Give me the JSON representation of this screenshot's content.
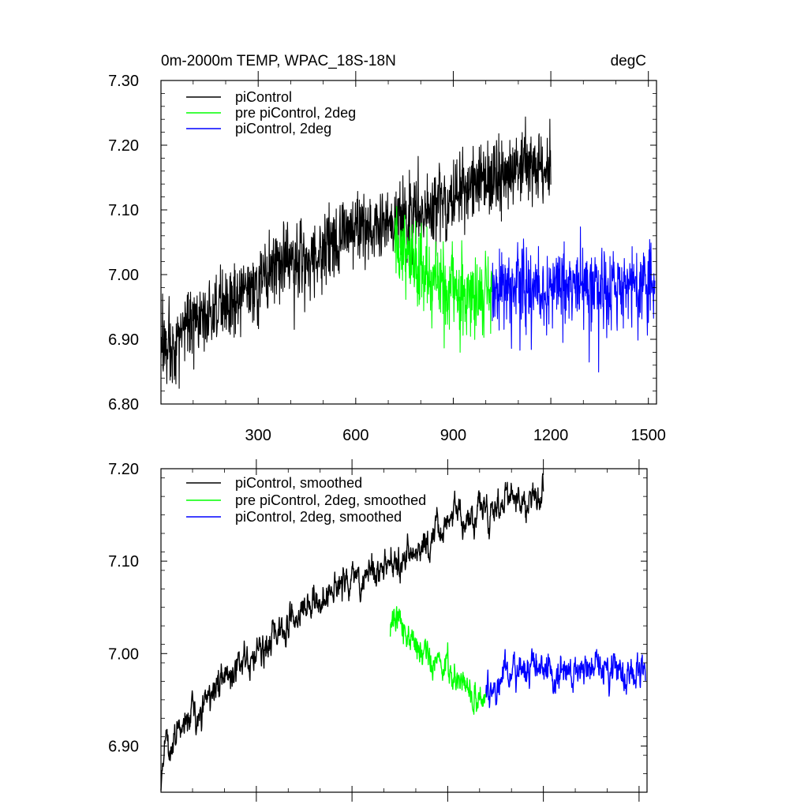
{
  "chart_data": [
    {
      "type": "line",
      "title": "0m-2000m TEMP, WPAC_18S-18N",
      "units": "degC",
      "xlim": [
        1,
        1525
      ],
      "ylim": [
        6.8,
        7.3
      ],
      "xticks": [
        300,
        600,
        900,
        1200,
        1500
      ],
      "xtick_labels": [
        "300",
        "600",
        "900",
        "1200",
        "1500"
      ],
      "yticks": [
        6.8,
        6.9,
        7.0,
        7.1,
        7.2,
        7.3
      ],
      "ytick_labels": [
        "6.80",
        "6.90",
        "7.00",
        "7.10",
        "7.20",
        "7.30"
      ],
      "legend_position": "top-left",
      "series": [
        {
          "name": "piControl",
          "color": "#000000",
          "x_start": 1,
          "x_end": 1200,
          "trend_x": [
            1,
            100,
            200,
            300,
            400,
            500,
            600,
            700,
            800,
            900,
            1000,
            1100,
            1200
          ],
          "trend_y": [
            6.88,
            6.93,
            6.96,
            6.99,
            7.02,
            7.04,
            7.07,
            7.08,
            7.1,
            7.12,
            7.15,
            7.16,
            7.17
          ],
          "noise": 0.028
        },
        {
          "name": "pre piControl, 2deg",
          "color": "#00ff00",
          "x_start": 720,
          "x_end": 1020,
          "trend_x": [
            720,
            780,
            840,
            900,
            960,
            1020
          ],
          "trend_y": [
            7.06,
            7.02,
            6.99,
            6.98,
            6.97,
            6.97
          ],
          "noise": 0.032
        },
        {
          "name": "piControl, 2deg",
          "color": "#0000ff",
          "x_start": 1020,
          "x_end": 1520,
          "trend_x": [
            1020,
            1100,
            1200,
            1300,
            1400,
            1520
          ],
          "trend_y": [
            6.97,
            6.98,
            6.98,
            6.98,
            6.98,
            6.98
          ],
          "noise": 0.032
        }
      ]
    },
    {
      "type": "line",
      "xlim": [
        1,
        1525
      ],
      "ylim": [
        6.85,
        7.2
      ],
      "xticks": [
        300,
        600,
        900,
        1200,
        1500
      ],
      "yticks": [
        6.9,
        7.0,
        7.1,
        7.2
      ],
      "ytick_labels": [
        "6.90",
        "7.00",
        "7.10",
        "7.20"
      ],
      "legend_position": "top-left",
      "series": [
        {
          "name": "piControl, smoothed",
          "color": "#000000",
          "x_start": 1,
          "x_end": 1200,
          "trend_x": [
            1,
            10,
            30,
            100,
            200,
            300,
            400,
            500,
            600,
            700,
            800,
            900,
            1000,
            1100,
            1200
          ],
          "trend_y": [
            6.86,
            6.9,
            6.91,
            6.93,
            6.97,
            7.0,
            7.03,
            7.06,
            7.08,
            7.09,
            7.11,
            7.14,
            7.15,
            7.17,
            7.17
          ],
          "noise": 0.012
        },
        {
          "name": "pre piControl, 2deg, smoothed",
          "color": "#00ff00",
          "x_start": 720,
          "x_end": 1020,
          "trend_x": [
            720,
            760,
            800,
            860,
            920,
            980,
            1020
          ],
          "trend_y": [
            7.03,
            7.04,
            7.01,
            6.99,
            6.97,
            6.96,
            6.95
          ],
          "noise": 0.012
        },
        {
          "name": "piControl, 2deg, smoothed",
          "color": "#0000ff",
          "x_start": 1020,
          "x_end": 1520,
          "trend_x": [
            1020,
            1100,
            1200,
            1300,
            1400,
            1520
          ],
          "trend_y": [
            6.96,
            6.98,
            6.98,
            6.98,
            6.98,
            6.98
          ],
          "noise": 0.012
        }
      ]
    }
  ]
}
